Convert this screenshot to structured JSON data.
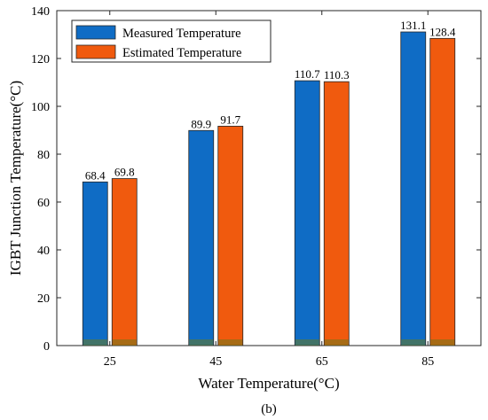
{
  "chart_data": {
    "type": "bar",
    "categories": [
      "25",
      "45",
      "65",
      "85"
    ],
    "series": [
      {
        "name": "Measured Temperature",
        "values": [
          68.4,
          89.9,
          110.7,
          131.1
        ],
        "color": "#0F6CC5"
      },
      {
        "name": "Estimated Temperature",
        "values": [
          69.8,
          91.7,
          110.3,
          128.4
        ],
        "color": "#F05A0E"
      }
    ],
    "data_labels": [
      [
        "68.4",
        "89.9",
        "110.7",
        "131.1"
      ],
      [
        "69.8",
        "91.7",
        "110.3",
        "128.4"
      ]
    ],
    "xlabel": "Water Temperature(°C)",
    "ylabel": "IGBT Junction Temperature(°C)",
    "ylim": [
      0,
      140
    ],
    "yticks": [
      0,
      20,
      40,
      60,
      80,
      100,
      120,
      140
    ],
    "legend_placement": "top-left",
    "grid": false,
    "bar_base_color": "#6B7A1C"
  },
  "caption": "(b)"
}
